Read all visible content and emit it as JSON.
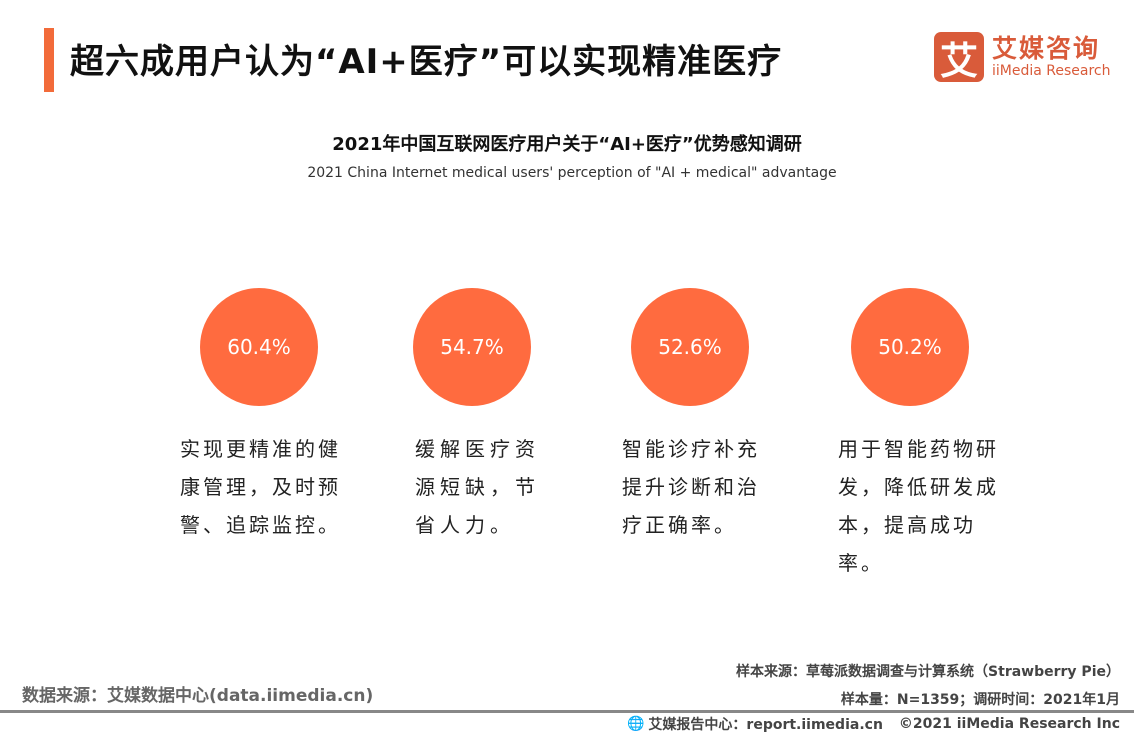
{
  "header": {
    "title": "超六成用户认为“AI+医疗”可以实现精准医疗",
    "accent_color": "#f26b3a"
  },
  "logo": {
    "mark": "艾",
    "name_cn": "艾媒咨询",
    "name_en": "iiMedia Research"
  },
  "chart": {
    "title": "2021年中国互联网医疗用户关于“AI+医疗”优势感知调研",
    "subtitle": "2021 China Internet medical users' perception of \"AI + medical\" advantage"
  },
  "items": [
    {
      "value": "60.4%",
      "text": "实现更精准的健康管理，及时预警、追踪监控。"
    },
    {
      "value": "54.7%",
      "text": "缓解医疗资源短缺，节省人力。"
    },
    {
      "value": "52.6%",
      "text": "智能诊疗补充提升诊断和治疗正确率。"
    },
    {
      "value": "50.2%",
      "text": "用于智能药物研发，降低研发成本，提高成功率。"
    }
  ],
  "circle_color": "#ff6b3f",
  "footer": {
    "data_source": "数据来源：艾媒数据中心(data.iimedia.cn)",
    "sample_source": "样本来源：草莓派数据调查与计算系统（Strawberry Pie）",
    "sample_info": "样本量：N=1359；调研时间：2021年1月",
    "report_center": "艾媒报告中心：report.iimedia.cn",
    "copyright": "©2021  iiMedia Research  Inc"
  }
}
